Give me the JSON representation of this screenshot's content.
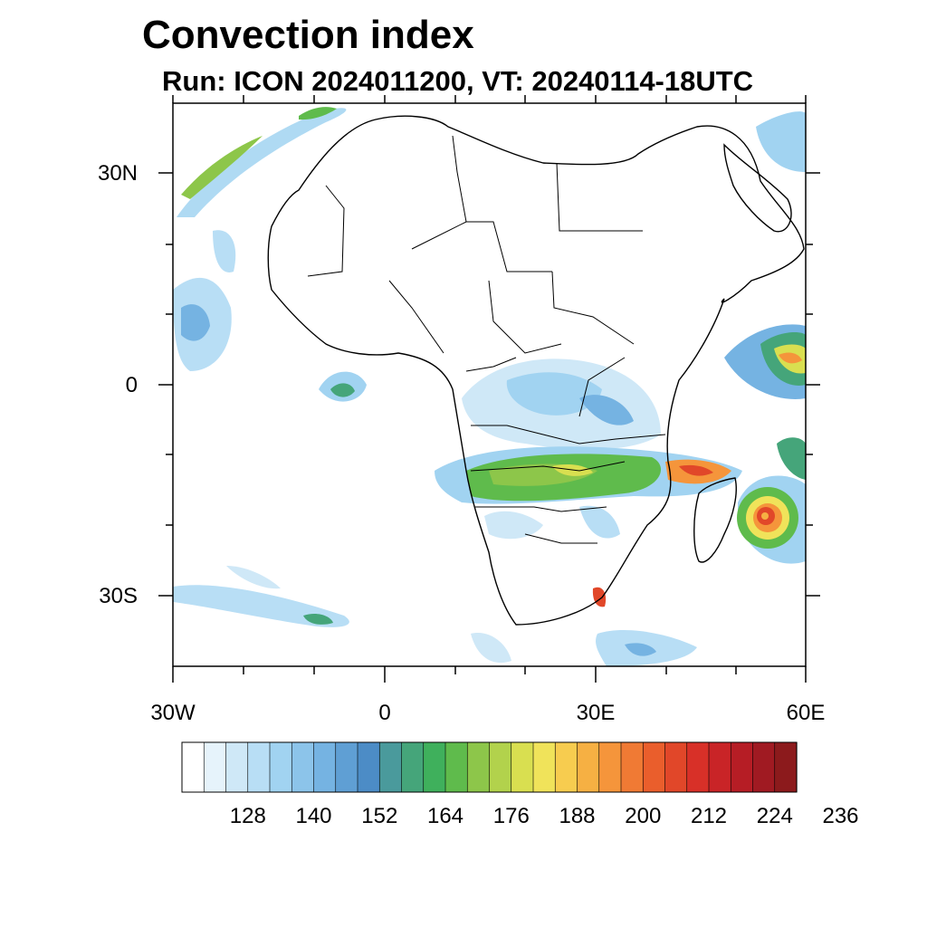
{
  "title": "Convection index",
  "subtitle": "Run: ICON 2024011200,  VT: 20240114-18UTC",
  "lat_labels": [
    "30N",
    "0",
    "30S"
  ],
  "lon_labels": [
    "30W",
    "0",
    "30E",
    "60E"
  ],
  "colorbar": {
    "colors": [
      "#ffffff",
      "#e6f3fb",
      "#cfe8f7",
      "#b8def5",
      "#a1d3f1",
      "#8cc4ea",
      "#75b3e2",
      "#5f9fd4",
      "#4c8cc6",
      "#4a9a9c",
      "#45a57a",
      "#3fb05c",
      "#5fbb4c",
      "#8dc64a",
      "#b2d24c",
      "#d9df50",
      "#f0e35a",
      "#f7cc4f",
      "#f6b043",
      "#f5953b",
      "#f07a34",
      "#ea5e2c",
      "#e14729",
      "#d83028",
      "#c92427",
      "#b61d25",
      "#a01a22",
      "#8c1a1c"
    ],
    "tick_labels": [
      "128",
      "140",
      "152",
      "164",
      "176",
      "188",
      "200",
      "212",
      "224",
      "236"
    ]
  },
  "chart_data": {
    "type": "heatmap",
    "title": "Convection index",
    "subtitle": "Run: ICON 2024011200,  VT: 20240114-18UTC",
    "lon_range": [
      -30,
      60
    ],
    "lat_range": [
      -40,
      40
    ],
    "lon_ticks": [
      "30W",
      "0",
      "30E",
      "60E"
    ],
    "lat_ticks": [
      "30N",
      "0",
      "30S"
    ],
    "colorbar_ticks": [
      128,
      140,
      152,
      164,
      176,
      188,
      200,
      212,
      224,
      236
    ]
  }
}
